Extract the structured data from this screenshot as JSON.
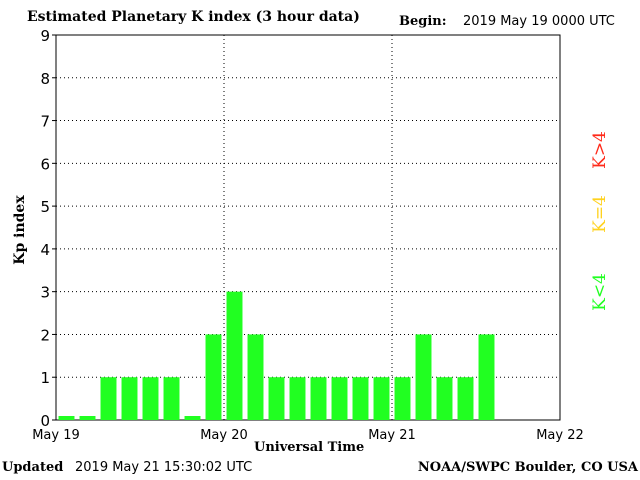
{
  "header": {
    "title": "Estimated Planetary K index (3 hour data)",
    "begin_label": "Begin:",
    "begin_value": "2019 May 19 0000 UTC"
  },
  "footer": {
    "updated_label": "Updated",
    "updated_value": "2019 May 21 15:30:02 UTC",
    "source": "NOAA/SWPC Boulder, CO USA"
  },
  "legend": {
    "high": "K>4",
    "mid": "K=4",
    "low": "K<4",
    "colors": {
      "high": "#ff2a1a",
      "mid": "#ffd21e",
      "low": "#21ff21"
    }
  },
  "chart_data": {
    "type": "bar",
    "xlabel": "Universal Time",
    "ylabel": "Kp index",
    "ylim": [
      0,
      9
    ],
    "yticks": [
      0,
      1,
      2,
      3,
      4,
      5,
      6,
      7,
      8,
      9
    ],
    "xtick_labels": [
      "May 19",
      "May 20",
      "May 21",
      "May 22"
    ],
    "grid": "dotted",
    "bar_color": "#21ff21",
    "categories": [
      "May 19 00",
      "May 19 03",
      "May 19 06",
      "May 19 09",
      "May 19 12",
      "May 19 15",
      "May 19 18",
      "May 19 21",
      "May 20 00",
      "May 20 03",
      "May 20 06",
      "May 20 09",
      "May 20 12",
      "May 20 15",
      "May 20 18",
      "May 20 21",
      "May 21 00",
      "May 21 03",
      "May 21 06",
      "May 21 09",
      "May 21 12",
      "May 21 15",
      "May 21 18",
      "May 21 21"
    ],
    "values": [
      0,
      0,
      1,
      1,
      1,
      1,
      0,
      2,
      3,
      2,
      1,
      1,
      1,
      1,
      1,
      1,
      1,
      2,
      1,
      1,
      2,
      null,
      null,
      null
    ]
  }
}
